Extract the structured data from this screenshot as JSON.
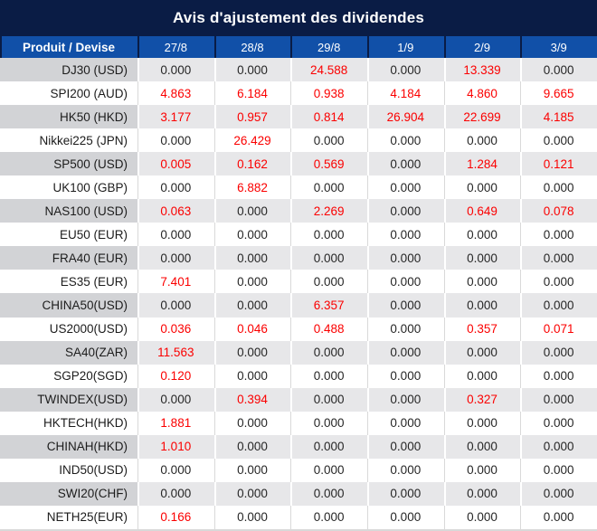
{
  "title": "Avis d'ajustement des dividendes",
  "colors": {
    "title_bg": "#0a1c45",
    "header_bg": "#1150a8",
    "header_text": "#ffffff",
    "row_alt_label_bg": "#d2d3d6",
    "row_alt_value_bg": "#e7e7e9",
    "value_black": "#262626",
    "value_red": "#fb0000",
    "grid_line_white_row": "#d9d9d9"
  },
  "table": {
    "product_header": "Produit / Devise",
    "date_headers": [
      "27/8",
      "28/8",
      "29/8",
      "1/9",
      "2/9",
      "3/9"
    ],
    "rows": [
      {
        "product": "DJ30 (USD)",
        "values": [
          "0.000",
          "0.000",
          "24.588",
          "0.000",
          "13.339",
          "0.000"
        ],
        "red_mask": [
          0,
          0,
          1,
          0,
          1,
          0
        ]
      },
      {
        "product": "SPI200 (AUD)",
        "values": [
          "4.863",
          "6.184",
          "0.938",
          "4.184",
          "4.860",
          "9.665"
        ],
        "red_mask": [
          1,
          1,
          1,
          1,
          1,
          1
        ]
      },
      {
        "product": "HK50 (HKD)",
        "values": [
          "3.177",
          "0.957",
          "0.814",
          "26.904",
          "22.699",
          "4.185"
        ],
        "red_mask": [
          1,
          1,
          1,
          1,
          1,
          1
        ]
      },
      {
        "product": "Nikkei225 (JPN)",
        "values": [
          "0.000",
          "26.429",
          "0.000",
          "0.000",
          "0.000",
          "0.000"
        ],
        "red_mask": [
          0,
          1,
          0,
          0,
          0,
          0
        ]
      },
      {
        "product": "SP500 (USD)",
        "values": [
          "0.005",
          "0.162",
          "0.569",
          "0.000",
          "1.284",
          "0.121"
        ],
        "red_mask": [
          1,
          1,
          1,
          0,
          1,
          1
        ]
      },
      {
        "product": "UK100 (GBP)",
        "values": [
          "0.000",
          "6.882",
          "0.000",
          "0.000",
          "0.000",
          "0.000"
        ],
        "red_mask": [
          0,
          1,
          0,
          0,
          0,
          0
        ]
      },
      {
        "product": "NAS100 (USD)",
        "values": [
          "0.063",
          "0.000",
          "2.269",
          "0.000",
          "0.649",
          "0.078"
        ],
        "red_mask": [
          1,
          0,
          1,
          0,
          1,
          1
        ]
      },
      {
        "product": "EU50 (EUR)",
        "values": [
          "0.000",
          "0.000",
          "0.000",
          "0.000",
          "0.000",
          "0.000"
        ],
        "red_mask": [
          0,
          0,
          0,
          0,
          0,
          0
        ]
      },
      {
        "product": "FRA40 (EUR)",
        "values": [
          "0.000",
          "0.000",
          "0.000",
          "0.000",
          "0.000",
          "0.000"
        ],
        "red_mask": [
          0,
          0,
          0,
          0,
          0,
          0
        ]
      },
      {
        "product": "ES35 (EUR)",
        "values": [
          "7.401",
          "0.000",
          "0.000",
          "0.000",
          "0.000",
          "0.000"
        ],
        "red_mask": [
          1,
          0,
          0,
          0,
          0,
          0
        ]
      },
      {
        "product": "CHINA50(USD)",
        "values": [
          "0.000",
          "0.000",
          "6.357",
          "0.000",
          "0.000",
          "0.000"
        ],
        "red_mask": [
          0,
          0,
          1,
          0,
          0,
          0
        ]
      },
      {
        "product": "US2000(USD)",
        "values": [
          "0.036",
          "0.046",
          "0.488",
          "0.000",
          "0.357",
          "0.071"
        ],
        "red_mask": [
          1,
          1,
          1,
          0,
          1,
          1
        ]
      },
      {
        "product": "SA40(ZAR)",
        "values": [
          "11.563",
          "0.000",
          "0.000",
          "0.000",
          "0.000",
          "0.000"
        ],
        "red_mask": [
          1,
          0,
          0,
          0,
          0,
          0
        ]
      },
      {
        "product": "SGP20(SGD)",
        "values": [
          "0.120",
          "0.000",
          "0.000",
          "0.000",
          "0.000",
          "0.000"
        ],
        "red_mask": [
          1,
          0,
          0,
          0,
          0,
          0
        ]
      },
      {
        "product": "TWINDEX(USD)",
        "values": [
          "0.000",
          "0.394",
          "0.000",
          "0.000",
          "0.327",
          "0.000"
        ],
        "red_mask": [
          0,
          1,
          0,
          0,
          1,
          0
        ]
      },
      {
        "product": "HKTECH(HKD)",
        "values": [
          "1.881",
          "0.000",
          "0.000",
          "0.000",
          "0.000",
          "0.000"
        ],
        "red_mask": [
          1,
          0,
          0,
          0,
          0,
          0
        ]
      },
      {
        "product": "CHINAH(HKD)",
        "values": [
          "1.010",
          "0.000",
          "0.000",
          "0.000",
          "0.000",
          "0.000"
        ],
        "red_mask": [
          1,
          0,
          0,
          0,
          0,
          0
        ]
      },
      {
        "product": "IND50(USD)",
        "values": [
          "0.000",
          "0.000",
          "0.000",
          "0.000",
          "0.000",
          "0.000"
        ],
        "red_mask": [
          0,
          0,
          0,
          0,
          0,
          0
        ]
      },
      {
        "product": "SWI20(CHF)",
        "values": [
          "0.000",
          "0.000",
          "0.000",
          "0.000",
          "0.000",
          "0.000"
        ],
        "red_mask": [
          0,
          0,
          0,
          0,
          0,
          0
        ]
      },
      {
        "product": "NETH25(EUR)",
        "values": [
          "0.166",
          "0.000",
          "0.000",
          "0.000",
          "0.000",
          "0.000"
        ],
        "red_mask": [
          1,
          0,
          0,
          0,
          0,
          0
        ]
      }
    ]
  }
}
